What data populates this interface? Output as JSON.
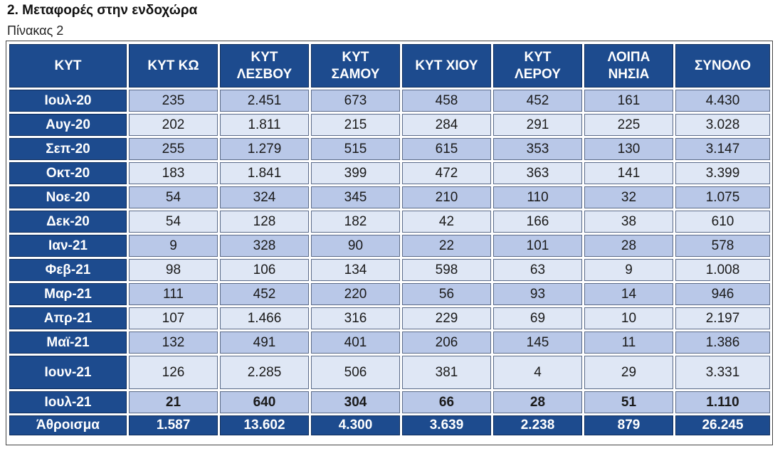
{
  "heading": "2. Μεταφορές στην ενδοχώρα",
  "table_caption": "Πίνακας 2",
  "columns": [
    [
      "ΚΥΤ"
    ],
    [
      "ΚΥΤ ΚΩ"
    ],
    [
      "ΚΥΤ",
      "ΛΕΣΒΟΥ"
    ],
    [
      "ΚΥΤ",
      "ΣΑΜΟΥ"
    ],
    [
      "ΚΥΤ ΧΙΟΥ"
    ],
    [
      "ΚΥΤ",
      "ΛΕΡΟΥ"
    ],
    [
      "ΛΟΙΠΑ",
      "ΝΗΣΙΑ"
    ],
    [
      "ΣΥΝΟΛΟ"
    ]
  ],
  "rows": [
    {
      "month": "Ιουλ-20",
      "values": [
        "235",
        "2.451",
        "673",
        "458",
        "452",
        "161",
        "4.430"
      ]
    },
    {
      "month": "Αυγ-20",
      "values": [
        "202",
        "1.811",
        "215",
        "284",
        "291",
        "225",
        "3.028"
      ]
    },
    {
      "month": "Σεπ-20",
      "values": [
        "255",
        "1.279",
        "515",
        "615",
        "353",
        "130",
        "3.147"
      ]
    },
    {
      "month": "Οκτ-20",
      "values": [
        "183",
        "1.841",
        "399",
        "472",
        "363",
        "141",
        "3.399"
      ]
    },
    {
      "month": "Νοε-20",
      "values": [
        "54",
        "324",
        "345",
        "210",
        "110",
        "32",
        "1.075"
      ]
    },
    {
      "month": "Δεκ-20",
      "values": [
        "54",
        "128",
        "182",
        "42",
        "166",
        "38",
        "610"
      ]
    },
    {
      "month": "Ιαν-21",
      "values": [
        "9",
        "328",
        "90",
        "22",
        "101",
        "28",
        "578"
      ]
    },
    {
      "month": "Φεβ-21",
      "values": [
        "98",
        "106",
        "134",
        "598",
        "63",
        "9",
        "1.008"
      ]
    },
    {
      "month": "Μαρ-21",
      "values": [
        "111",
        "452",
        "220",
        "56",
        "93",
        "14",
        "946"
      ]
    },
    {
      "month": "Απρ-21",
      "values": [
        "107",
        "1.466",
        "316",
        "229",
        "69",
        "10",
        "2.197"
      ]
    },
    {
      "month": "Μαϊ-21",
      "values": [
        "132",
        "491",
        "401",
        "206",
        "145",
        "11",
        "1.386"
      ]
    },
    {
      "month": "Ιουν-21",
      "values": [
        "126",
        "2.285",
        "506",
        "381",
        "4",
        "29",
        "3.331"
      ]
    },
    {
      "month": "Ιουλ-21",
      "values": [
        "21",
        "640",
        "304",
        "66",
        "28",
        "51",
        "1.110"
      ]
    }
  ],
  "total": {
    "label": "Άθροισμα",
    "values": [
      "1.587",
      "13.602",
      "4.300",
      "3.639",
      "2.238",
      "879",
      "26.245"
    ]
  },
  "colors": {
    "header_bg": "#1d4b8e",
    "row_odd": "#b9c8e8",
    "row_even": "#dfe7f5"
  }
}
